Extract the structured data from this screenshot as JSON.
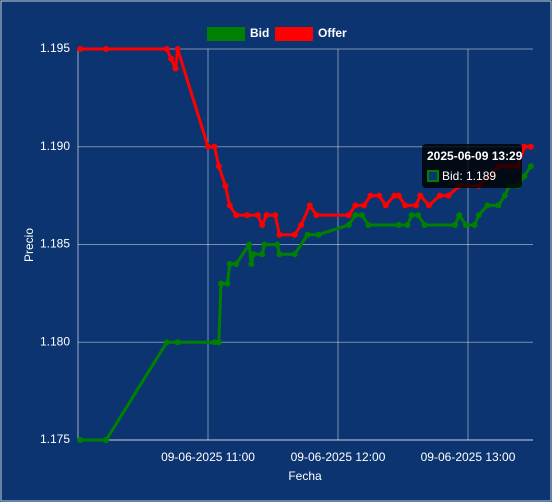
{
  "chart_data": {
    "type": "line",
    "x_label": "Fecha",
    "y_label": "Precio",
    "xlim": [
      "2025-06-09 10:00",
      "2025-06-09 13:30"
    ],
    "xticks": [
      {
        "value": "2025-06-09 11:00",
        "label": "09-06-2025 11:00"
      },
      {
        "value": "2025-06-09 12:00",
        "label": "09-06-2025 12:00"
      },
      {
        "value": "2025-06-09 13:00",
        "label": "09-06-2025 13:00"
      }
    ],
    "ylim": [
      1.175,
      1.195
    ],
    "yticks": [
      {
        "value": 1.175,
        "label": "1.175"
      },
      {
        "value": 1.18,
        "label": "1.180"
      },
      {
        "value": 1.185,
        "label": "1.185"
      },
      {
        "value": 1.19,
        "label": "1.190"
      },
      {
        "value": 1.195,
        "label": "1.195"
      }
    ],
    "grid": true,
    "legend": "top",
    "tooltip": {
      "title": "2025-06-09 13:29",
      "label": "Bid: 1.189"
    },
    "series": [
      {
        "name": "Bid",
        "color": "#008000",
        "x": [
          "2025-06-09 10:01",
          "2025-06-09 10:13",
          "2025-06-09 10:41",
          "2025-06-09 10:46",
          "2025-06-09 11:03",
          "2025-06-09 11:05",
          "2025-06-09 11:06",
          "2025-06-09 11:09",
          "2025-06-09 11:10",
          "2025-06-09 11:13",
          "2025-06-09 11:19",
          "2025-06-09 11:20",
          "2025-06-09 11:21",
          "2025-06-09 11:25",
          "2025-06-09 11:26",
          "2025-06-09 11:32",
          "2025-06-09 11:33",
          "2025-06-09 11:40",
          "2025-06-09 11:46",
          "2025-06-09 11:51",
          "2025-06-09 12:05",
          "2025-06-09 12:08",
          "2025-06-09 12:11",
          "2025-06-09 12:14",
          "2025-06-09 12:28",
          "2025-06-09 12:32",
          "2025-06-09 12:34",
          "2025-06-09 12:37",
          "2025-06-09 12:40",
          "2025-06-09 12:54",
          "2025-06-09 12:56",
          "2025-06-09 12:59",
          "2025-06-09 13:03",
          "2025-06-09 13:05",
          "2025-06-09 13:09",
          "2025-06-09 13:14",
          "2025-06-09 13:17",
          "2025-06-09 13:19",
          "2025-06-09 13:23",
          "2025-06-09 13:26",
          "2025-06-09 13:29"
        ],
        "values": [
          1.175,
          1.175,
          1.18,
          1.18,
          1.18,
          1.18,
          1.183,
          1.183,
          1.184,
          1.184,
          1.185,
          1.184,
          1.1845,
          1.1845,
          1.185,
          1.185,
          1.1845,
          1.1845,
          1.1855,
          1.1855,
          1.186,
          1.1865,
          1.1865,
          1.186,
          1.186,
          1.186,
          1.1865,
          1.1865,
          1.186,
          1.186,
          1.1865,
          1.186,
          1.186,
          1.1865,
          1.187,
          1.187,
          1.1875,
          1.188,
          1.188,
          1.1885,
          1.189
        ]
      },
      {
        "name": "Offer",
        "color": "#ff0000",
        "x": [
          "2025-06-09 10:01",
          "2025-06-09 10:13",
          "2025-06-09 10:41",
          "2025-06-09 10:43",
          "2025-06-09 10:45",
          "2025-06-09 10:46",
          "2025-06-09 11:00",
          "2025-06-09 11:03",
          "2025-06-09 11:05",
          "2025-06-09 11:08",
          "2025-06-09 11:10",
          "2025-06-09 11:13",
          "2025-06-09 11:18",
          "2025-06-09 11:23",
          "2025-06-09 11:25",
          "2025-06-09 11:27",
          "2025-06-09 11:31",
          "2025-06-09 11:33",
          "2025-06-09 11:40",
          "2025-06-09 11:43",
          "2025-06-09 11:47",
          "2025-06-09 11:50",
          "2025-06-09 12:05",
          "2025-06-09 12:08",
          "2025-06-09 12:12",
          "2025-06-09 12:15",
          "2025-06-09 12:19",
          "2025-06-09 12:22",
          "2025-06-09 12:26",
          "2025-06-09 12:28",
          "2025-06-09 12:31",
          "2025-06-09 12:36",
          "2025-06-09 12:38",
          "2025-06-09 12:42",
          "2025-06-09 12:47",
          "2025-06-09 12:51",
          "2025-06-09 12:56",
          "2025-06-09 13:05",
          "2025-06-09 13:10",
          "2025-06-09 13:14",
          "2025-06-09 13:19",
          "2025-06-09 13:23",
          "2025-06-09 13:26",
          "2025-06-09 13:29"
        ],
        "values": [
          1.195,
          1.195,
          1.195,
          1.1945,
          1.194,
          1.195,
          1.19,
          1.19,
          1.189,
          1.188,
          1.187,
          1.1865,
          1.1865,
          1.1865,
          1.186,
          1.1865,
          1.1865,
          1.1855,
          1.1855,
          1.186,
          1.187,
          1.1865,
          1.1865,
          1.187,
          1.187,
          1.1875,
          1.1875,
          1.187,
          1.1875,
          1.1875,
          1.187,
          1.187,
          1.1875,
          1.187,
          1.1875,
          1.1875,
          1.188,
          1.188,
          1.1885,
          1.189,
          1.189,
          1.189,
          1.19,
          1.19
        ]
      }
    ]
  }
}
